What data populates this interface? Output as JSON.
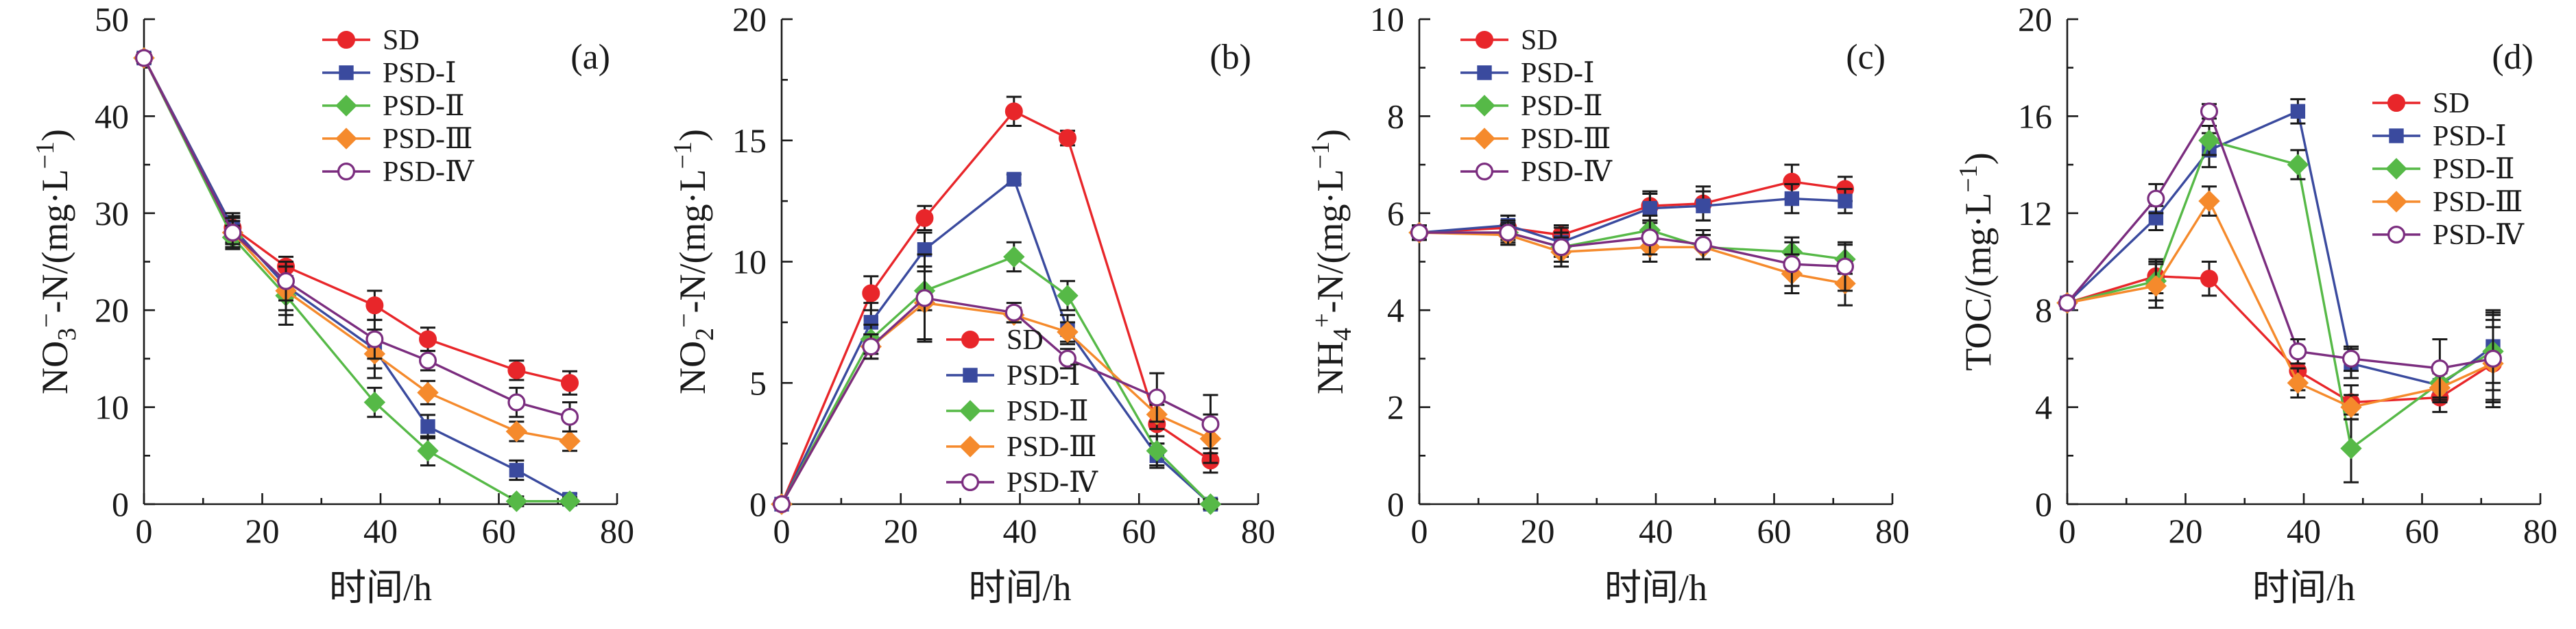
{
  "chart_data": [
    {
      "type": "line",
      "panel_label": "(a)",
      "xlabel": "时间/h",
      "ylabel": "NO3−-N/(mg·L−1)",
      "ylabel_parts": {
        "base": "NO",
        "sub": "3",
        "sup": "−",
        "rest": "-N/(mg·L",
        "unit_sup": "−1",
        "close": ")"
      },
      "xlim": [
        0,
        80
      ],
      "ylim": [
        0,
        50
      ],
      "xticks": [
        "0",
        "20",
        "40",
        "60",
        "80"
      ],
      "yticks": [
        "0",
        "10",
        "20",
        "30",
        "40",
        "50"
      ],
      "legend_position": "top-right",
      "x": [
        0,
        15,
        24,
        39,
        48,
        63,
        72
      ],
      "series": [
        {
          "name": "SD",
          "values": [
            46,
            28.5,
            24.5,
            20.5,
            17,
            13.8,
            12.5
          ],
          "errors": [
            0.5,
            1.2,
            1.0,
            1.5,
            1.2,
            1.0,
            1.2
          ]
        },
        {
          "name": "PSD-Ⅰ",
          "values": [
            46,
            28.5,
            22.5,
            16,
            8,
            3.5,
            0.5
          ],
          "errors": [
            0.5,
            1.5,
            2.5,
            2.0,
            1.2,
            1.0,
            0.6
          ]
        },
        {
          "name": "PSD-Ⅱ",
          "values": [
            46,
            27.5,
            21.5,
            10.5,
            5.5,
            0.3,
            0.3
          ],
          "errors": [
            0.5,
            1.2,
            3.0,
            1.5,
            1.5,
            0.5,
            0.4
          ]
        },
        {
          "name": "PSD-Ⅲ",
          "values": [
            46,
            28,
            22,
            15.5,
            11.5,
            7.5,
            6.5
          ],
          "errors": [
            0.5,
            1.2,
            2.5,
            2.5,
            1.2,
            1.0,
            1.0
          ]
        },
        {
          "name": "PSD-Ⅳ",
          "values": [
            46,
            28,
            23,
            17,
            14.8,
            10.5,
            9
          ],
          "errors": [
            0.5,
            1.5,
            2.0,
            2.0,
            1.0,
            1.5,
            1.5
          ]
        }
      ]
    },
    {
      "type": "line",
      "panel_label": "(b)",
      "xlabel": "时间/h",
      "ylabel": "NO2−-N/(mg·L−1)",
      "ylabel_parts": {
        "base": "NO",
        "sub": "2",
        "sup": "−",
        "rest": "-N/(mg·L",
        "unit_sup": "−1",
        "close": ")"
      },
      "xlim": [
        0,
        80
      ],
      "ylim": [
        0,
        20
      ],
      "xticks": [
        "0",
        "20",
        "40",
        "60",
        "80"
      ],
      "yticks": [
        "0",
        "5",
        "10",
        "15",
        "20"
      ],
      "legend_position": "bottom-center",
      "x": [
        0,
        15,
        24,
        39,
        48,
        63,
        72
      ],
      "series": [
        {
          "name": "SD",
          "values": [
            0,
            8.7,
            11.8,
            16.2,
            15.1,
            3.3,
            1.8
          ],
          "errors": [
            0.1,
            0.7,
            0.5,
            0.6,
            0.3,
            0.8,
            0.5
          ]
        },
        {
          "name": "PSD-Ⅰ",
          "values": [
            0,
            7.5,
            10.5,
            13.4,
            7.2,
            2,
            0
          ],
          "errors": [
            0.1,
            0.8,
            0.7,
            0.2,
            0.6,
            0.5,
            0.2
          ]
        },
        {
          "name": "PSD-Ⅱ",
          "values": [
            0,
            6.8,
            8.8,
            10.2,
            8.6,
            2.2,
            0
          ],
          "errors": [
            0.1,
            0.6,
            0.8,
            0.6,
            0.6,
            0.6,
            0.2
          ]
        },
        {
          "name": "PSD-Ⅲ",
          "values": [
            0,
            6.5,
            8.3,
            7.8,
            7.1,
            3.7,
            2.7
          ],
          "errors": [
            0.1,
            0.5,
            1.5,
            0.3,
            0.4,
            0.6,
            1.0
          ]
        },
        {
          "name": "PSD-Ⅳ",
          "values": [
            0,
            6.5,
            8.5,
            7.9,
            6,
            4.4,
            3.3
          ],
          "errors": [
            0.1,
            0.5,
            1.8,
            0.4,
            0.4,
            1.0,
            1.2
          ]
        }
      ]
    },
    {
      "type": "line",
      "panel_label": "(c)",
      "xlabel": "时间/h",
      "ylabel": "NH4+-N/(mg·L−1)",
      "ylabel_parts": {
        "base": "NH",
        "sub": "4",
        "sup": "+",
        "rest": "-N/(mg·L",
        "unit_sup": "−1",
        "close": ")"
      },
      "xlim": [
        0,
        80
      ],
      "ylim": [
        0,
        10
      ],
      "xticks": [
        "0",
        "20",
        "40",
        "60",
        "80"
      ],
      "yticks": [
        "0",
        "2",
        "4",
        "6",
        "8",
        "10"
      ],
      "legend_position": "top-left",
      "x": [
        0,
        15,
        24,
        39,
        48,
        63,
        72
      ],
      "series": [
        {
          "name": "SD",
          "values": [
            5.6,
            5.7,
            5.55,
            6.15,
            6.2,
            6.65,
            6.5
          ],
          "errors": [
            0.15,
            0.25,
            0.2,
            0.3,
            0.35,
            0.35,
            0.25
          ]
        },
        {
          "name": "PSD-Ⅰ",
          "values": [
            5.6,
            5.75,
            5.4,
            6.1,
            6.15,
            6.3,
            6.25
          ],
          "errors": [
            0.15,
            0.2,
            0.3,
            0.3,
            0.3,
            0.3,
            0.25
          ]
        },
        {
          "name": "PSD-Ⅱ",
          "values": [
            5.6,
            5.6,
            5.3,
            5.65,
            5.3,
            5.2,
            5.05
          ],
          "errors": [
            0.15,
            0.2,
            0.3,
            0.3,
            0.25,
            0.3,
            0.3
          ]
        },
        {
          "name": "PSD-Ⅲ",
          "values": [
            5.6,
            5.55,
            5.2,
            5.3,
            5.3,
            4.75,
            4.55
          ],
          "errors": [
            0.15,
            0.2,
            0.3,
            0.3,
            0.25,
            0.4,
            0.45
          ]
        },
        {
          "name": "PSD-Ⅳ",
          "values": [
            5.6,
            5.6,
            5.3,
            5.5,
            5.35,
            4.95,
            4.9
          ],
          "errors": [
            0.15,
            0.25,
            0.3,
            0.35,
            0.3,
            0.45,
            0.5
          ]
        }
      ]
    },
    {
      "type": "line",
      "panel_label": "(d)",
      "xlabel": "时间/h",
      "ylabel": "TOC/(mg·L−1)",
      "ylabel_parts": {
        "base": "TOC/(mg·L",
        "sub": "",
        "sup": "",
        "rest": "",
        "unit_sup": "−1",
        "close": ")"
      },
      "xlim": [
        0,
        80
      ],
      "ylim": [
        0,
        20
      ],
      "xticks": [
        "0",
        "20",
        "40",
        "60",
        "80"
      ],
      "yticks": [
        "0",
        "4",
        "8",
        "12",
        "16",
        "20"
      ],
      "legend_position": "top-right",
      "x": [
        0,
        15,
        24,
        39,
        48,
        63,
        72
      ],
      "series": [
        {
          "name": "SD",
          "values": [
            8.3,
            9.4,
            9.3,
            5.5,
            4.2,
            4.4,
            5.8
          ],
          "errors": [
            0.2,
            0.7,
            0.7,
            0.8,
            0.7,
            0.6,
            1.5
          ]
        },
        {
          "name": "PSD-Ⅰ",
          "values": [
            8.3,
            11.8,
            14.6,
            16.2,
            5.8,
            4.9,
            6.5
          ],
          "errors": [
            0.2,
            0.5,
            0.7,
            0.5,
            0.6,
            0.6,
            1.5
          ]
        },
        {
          "name": "PSD-Ⅱ",
          "values": [
            8.3,
            9.2,
            15.0,
            14.0,
            2.3,
            5.0,
            6.3
          ],
          "errors": [
            0.2,
            0.8,
            0.6,
            0.6,
            1.4,
            0.7,
            1.6
          ]
        },
        {
          "name": "PSD-Ⅲ",
          "values": [
            8.3,
            9.0,
            12.5,
            5.0,
            4.0,
            4.8,
            5.8
          ],
          "errors": [
            0.2,
            0.9,
            0.6,
            0.6,
            0.5,
            0.6,
            1.8
          ]
        },
        {
          "name": "PSD-Ⅳ",
          "values": [
            8.3,
            12.6,
            16.2,
            6.3,
            6.0,
            5.6,
            6.0
          ],
          "errors": [
            0.2,
            0.6,
            0.3,
            0.5,
            0.5,
            1.2,
            1.8
          ]
        }
      ]
    }
  ],
  "series_styles": [
    {
      "color": "#e8262a",
      "marker": "circle-filled"
    },
    {
      "color": "#3a4a9e",
      "marker": "square-filled"
    },
    {
      "color": "#56b947",
      "marker": "diamond-filled"
    },
    {
      "color": "#f58a2c",
      "marker": "diamond-filled"
    },
    {
      "color": "#7b2d7f",
      "marker": "circle-open"
    }
  ]
}
